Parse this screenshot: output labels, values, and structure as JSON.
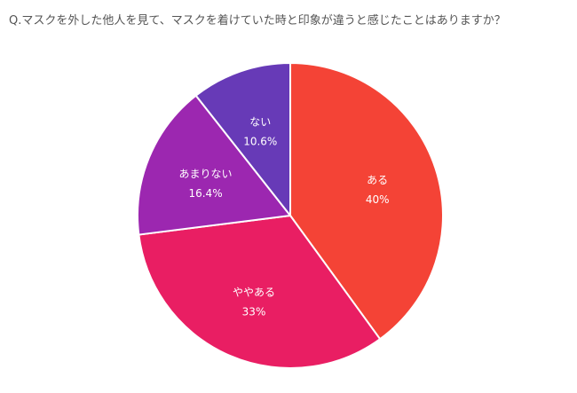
{
  "question": "Q.マスクを外した他人を見て、マスクを着けていた時と印象が違うと感じたことはありますか？",
  "chart_data": {
    "type": "pie",
    "title": "Q.マスクを外した他人を見て、マスクを着けていた時と印象が違うと感じたことはありますか？",
    "start_angle_deg": 0,
    "direction": "clockwise",
    "slices": [
      {
        "label": "ある",
        "value": 40,
        "value_label": "40%",
        "color": "#f44336"
      },
      {
        "label": "ややある",
        "value": 33,
        "value_label": "33%",
        "color": "#e91e63"
      },
      {
        "label": "あまりない",
        "value": 16.4,
        "value_label": "16.4%",
        "color": "#9c27b0"
      },
      {
        "label": "ない",
        "value": 10.6,
        "value_label": "10.6%",
        "color": "#673ab7"
      }
    ]
  }
}
